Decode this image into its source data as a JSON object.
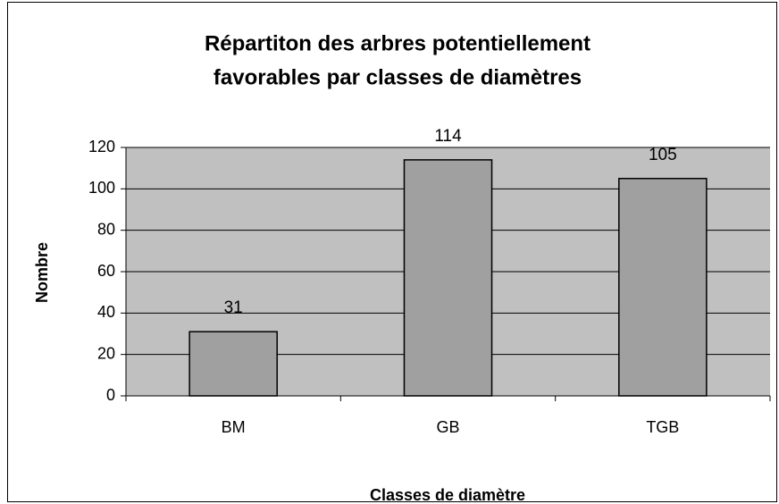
{
  "chart_data": {
    "type": "bar",
    "title": [
      "Répartiton des arbres potentiellement",
      "favorables par classes de diamètres"
    ],
    "x_label": "Classes de diamètre",
    "y_label": "Nombre",
    "categories": [
      "BM",
      "GB",
      "TGB"
    ],
    "values": [
      31,
      114,
      105
    ],
    "color": "#a0a0a0",
    "plot_background": "#c0c0c0",
    "ylim": [
      0,
      120
    ],
    "yticks": [
      0,
      20,
      40,
      60,
      80,
      100,
      120
    ],
    "grid": true
  }
}
